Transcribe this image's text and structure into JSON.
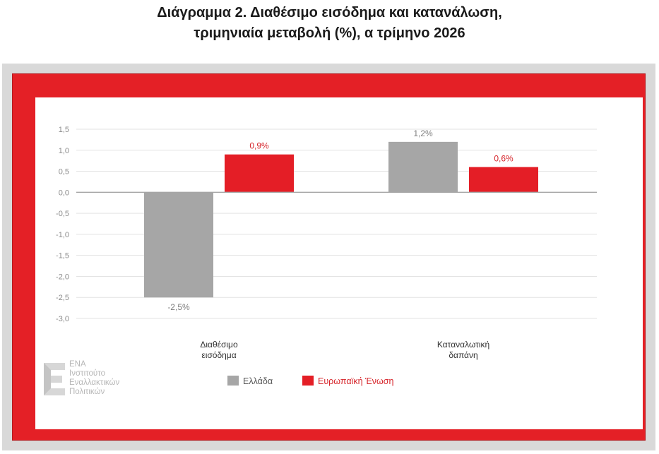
{
  "title_lines": [
    "Διάγραμμα 2. Διαθέσιμο εισόδημα και κατανάλωση,",
    "τριμηνιαία μεταβολή (%), α  τρίμηνο 2026"
  ],
  "logo": {
    "lines": [
      "ΕΝΑ",
      "Ινστιτούτο",
      "Εναλλακτικών",
      "Πολιτικών"
    ]
  },
  "colors": {
    "greece": "#a6a6a6",
    "eu": "#e41e26",
    "label_greece": "#7f7f7f",
    "label_eu": "#d6242a",
    "frame": "#e42026"
  },
  "chart_data": {
    "type": "bar",
    "categories": [
      [
        "Διαθέσιμο",
        "εισόδημα"
      ],
      [
        "Καταναλωτική",
        "δαπάνη"
      ]
    ],
    "series": [
      {
        "name": "Ελλάδα",
        "values": [
          -2.5,
          1.2
        ],
        "labels": [
          "-2,5%",
          "1,2%"
        ]
      },
      {
        "name": "Ευρωπαϊκή Ένωση",
        "values": [
          0.9,
          0.6
        ],
        "labels": [
          "0,9%",
          "0,6%"
        ]
      }
    ],
    "ylim": [
      -3.0,
      1.5
    ],
    "yticks": [
      1.5,
      1.0,
      0.5,
      0.0,
      -0.5,
      -1.0,
      -1.5,
      -2.0,
      -2.5,
      -3.0
    ],
    "ytick_labels": [
      "1,5",
      "1,0",
      "0,5",
      "0,0",
      "-0,5",
      "-1,0",
      "-1,5",
      "-2,0",
      "-2,5",
      "-3,0"
    ],
    "grid": true,
    "legend_position": "bottom"
  }
}
